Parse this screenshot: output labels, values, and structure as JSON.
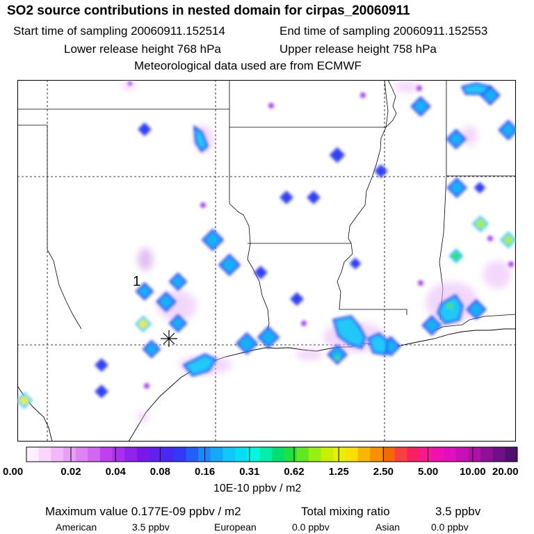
{
  "header": {
    "title": "SO2 source contributions in nested domain for cirpas_20060911",
    "start_time": "Start time of sampling 20060911.152514",
    "end_time": "End time of sampling 20060911.152553",
    "lower_height": "Lower release height  768 hPa",
    "upper_height": "Upper release height  758 hPa",
    "met_data": "Meteorological data used are from ECMWF"
  },
  "map": {
    "source_label": "1",
    "receptor_marker": "asterisk-marker",
    "colors": {
      "violet_light": "#e8b8f8",
      "violet": "#b040f0",
      "purple": "#7a1ef2",
      "blue": "#2040f8",
      "sky": "#10b8ff",
      "cyan": "#00f8f0",
      "green": "#30e050",
      "yellow": "#f0f000"
    }
  },
  "colorbar": {
    "colors": [
      "#fff0ff",
      "#fbd6fb",
      "#f3b8f8",
      "#e8a0f4",
      "#dd84f2",
      "#cf68f0",
      "#c040f0",
      "#a830ee",
      "#9024ec",
      "#7a18ea",
      "#6020ee",
      "#4a28f4",
      "#3438f8",
      "#2060f8",
      "#1c88f8",
      "#14a8f8",
      "#10c8f8",
      "#00e0f0",
      "#00f8e0",
      "#00f0a8",
      "#00e070",
      "#20e040",
      "#60e820",
      "#98f010",
      "#c8f000",
      "#e8f000",
      "#f8e000",
      "#f8b800",
      "#f89000",
      "#f86800",
      "#f84040",
      "#f82060",
      "#f81890",
      "#f010b0",
      "#e010c0",
      "#c810b8",
      "#b010a8",
      "#901098",
      "#701088",
      "#501070"
    ],
    "tick_labels": [
      "0.00",
      "0.02",
      "0.04",
      "0.08",
      "0.16",
      "0.31",
      "0.62",
      "1.25",
      "2.50",
      "5.00",
      "10.00",
      "20.00"
    ],
    "unit_label": "10E-10 ppbv / m2"
  },
  "summary": {
    "max_value": "Maximum value  0.177E-09 ppbv / m2",
    "total_mixing": "Total mixing ratio",
    "total_value": "3.5 ppbv",
    "regions": [
      {
        "name": "American",
        "value": "3.5 ppbv"
      },
      {
        "name": "European",
        "value": "0.0 ppbv"
      },
      {
        "name": "Asian",
        "value": "0.0 ppbv"
      }
    ]
  }
}
